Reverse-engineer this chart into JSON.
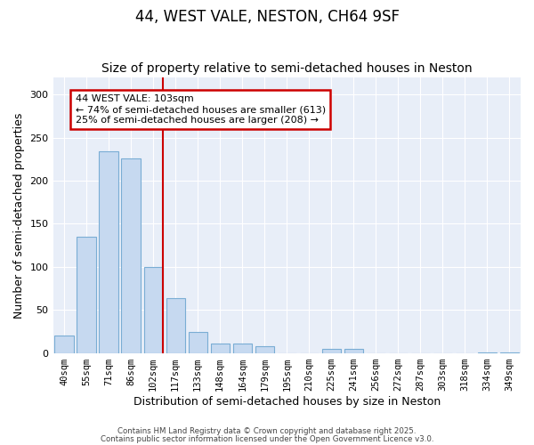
{
  "title": "44, WEST VALE, NESTON, CH64 9SF",
  "subtitle": "Size of property relative to semi-detached houses in Neston",
  "xlabel": "Distribution of semi-detached houses by size in Neston",
  "ylabel": "Number of semi-detached properties",
  "categories": [
    "40sqm",
    "55sqm",
    "71sqm",
    "86sqm",
    "102sqm",
    "117sqm",
    "133sqm",
    "148sqm",
    "164sqm",
    "179sqm",
    "195sqm",
    "210sqm",
    "225sqm",
    "241sqm",
    "256sqm",
    "272sqm",
    "287sqm",
    "303sqm",
    "318sqm",
    "334sqm",
    "349sqm"
  ],
  "values": [
    20,
    135,
    234,
    226,
    100,
    64,
    24,
    11,
    11,
    8,
    0,
    0,
    5,
    5,
    0,
    0,
    0,
    0,
    0,
    1,
    1
  ],
  "bar_color": "#c6d9f0",
  "bar_edge_color": "#7aadd4",
  "vline_color": "#cc0000",
  "annotation_text": "44 WEST VALE: 103sqm\n← 74% of semi-detached houses are smaller (613)\n25% of semi-detached houses are larger (208) →",
  "annotation_box_color": "#cc0000",
  "footer1": "Contains HM Land Registry data © Crown copyright and database right 2025.",
  "footer2": "Contains public sector information licensed under the Open Government Licence v3.0.",
  "ylim": [
    0,
    320
  ],
  "yticks": [
    0,
    50,
    100,
    150,
    200,
    250,
    300
  ],
  "background_color": "#e8eef8",
  "title_fontsize": 12,
  "subtitle_fontsize": 10,
  "axis_label_fontsize": 9,
  "tick_fontsize": 7.5,
  "annotation_fontsize": 8
}
